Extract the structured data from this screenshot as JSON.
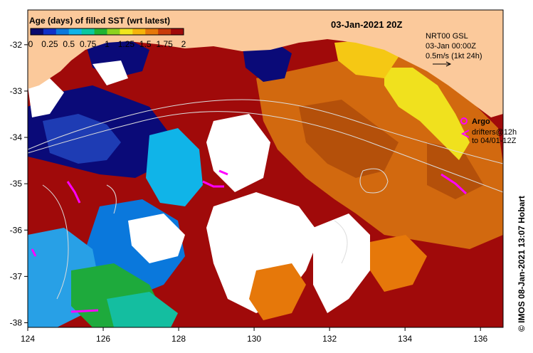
{
  "title": "Age (days) of filled SST (wrt latest)",
  "date_title": "03-Jan-2021 20Z",
  "colorbar": {
    "ticks": [
      "0",
      "0.25",
      "0.5",
      "0.75",
      "1",
      "1.25",
      "1.5",
      "1.75",
      "2"
    ],
    "colors": [
      "#0a0a6e",
      "#1030c8",
      "#0a78dc",
      "#10b4e8",
      "#0ac8a0",
      "#20b432",
      "#8cd21e",
      "#f0e61e",
      "#f5b40a",
      "#e6780a",
      "#c83c0a",
      "#a00a0a"
    ]
  },
  "info": {
    "line1": "NRT00 GSL",
    "line2": "03-Jan 00:00Z",
    "line3": "0.5m/s (1kt 24h)"
  },
  "legend": {
    "argo": "Argo",
    "drifters_line1": "drifters@12h",
    "drifters_line2": "to 04/01-12Z"
  },
  "credit": "© IMOS 08-Jan-2021 13:07 Hobart",
  "x_ticks": [
    "124",
    "126",
    "128",
    "130",
    "132",
    "134",
    "136"
  ],
  "y_ticks": [
    "-32",
    "-33",
    "-34",
    "-35",
    "-36",
    "-37",
    "-38"
  ],
  "colors": {
    "land": "#fbc99b",
    "deep_red": "#a00a0a",
    "orange": "#e6780a",
    "dark_orange": "#c86414",
    "yellow": "#f0e61e",
    "navy": "#0a0a78",
    "blue": "#1030c8",
    "sky": "#10b4e8",
    "green": "#20b432",
    "teal": "#0ac8a0",
    "magenta": "#ff00ff"
  }
}
